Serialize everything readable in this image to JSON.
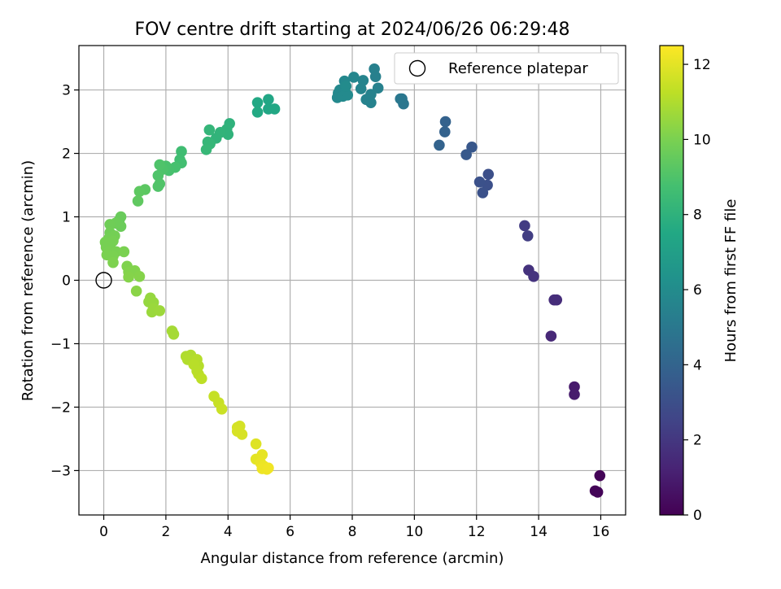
{
  "chart_data": {
    "type": "scatter",
    "title": "FOV centre drift starting at 2024/06/26 06:29:48",
    "xlabel": "Angular distance from reference (arcmin)",
    "ylabel": "Rotation from reference (arcmin)",
    "xlim": [
      -0.8,
      16.8
    ],
    "ylim": [
      -3.7,
      3.7
    ],
    "xticks": [
      0,
      2,
      4,
      6,
      8,
      10,
      12,
      14,
      16
    ],
    "xtick_labels": [
      "0",
      "2",
      "4",
      "6",
      "8",
      "10",
      "12",
      "14",
      "16"
    ],
    "yticks": [
      -3,
      -2,
      -1,
      0,
      1,
      2,
      3
    ],
    "ytick_labels": [
      "−3",
      "−2",
      "−1",
      "0",
      "1",
      "2",
      "3"
    ],
    "grid": true,
    "legend": {
      "position": "top-right",
      "label": "Reference platepar"
    },
    "reference_point": {
      "x": 0,
      "y": 0
    },
    "colorbar": {
      "label": "Hours from first FF file",
      "range": [
        0,
        12.5
      ],
      "ticks": [
        0,
        2,
        4,
        6,
        8,
        10,
        12
      ],
      "tick_labels": [
        "0",
        "2",
        "4",
        "6",
        "8",
        "10",
        "12"
      ],
      "colormap": "viridis"
    },
    "points": [
      [
        15.97,
        -3.08,
        0.1
      ],
      [
        15.82,
        -3.32,
        0.15
      ],
      [
        15.9,
        -3.34,
        0.15
      ],
      [
        15.15,
        -1.68,
        0.9
      ],
      [
        15.15,
        -1.8,
        0.95
      ],
      [
        14.4,
        -0.88,
        1.4
      ],
      [
        14.5,
        -0.31,
        1.6
      ],
      [
        14.58,
        -0.31,
        1.6
      ],
      [
        13.68,
        0.16,
        1.8
      ],
      [
        13.84,
        0.06,
        1.85
      ],
      [
        13.55,
        0.86,
        2.2
      ],
      [
        13.65,
        0.7,
        2.25
      ],
      [
        12.38,
        1.67,
        3.0
      ],
      [
        12.35,
        1.5,
        3.05
      ],
      [
        12.1,
        1.55,
        3.1
      ],
      [
        12.2,
        1.38,
        3.1
      ],
      [
        11.85,
        2.1,
        3.4
      ],
      [
        11.67,
        1.98,
        3.45
      ],
      [
        11.0,
        2.5,
        3.9
      ],
      [
        10.98,
        2.34,
        3.9
      ],
      [
        10.8,
        2.13,
        3.95
      ],
      [
        9.6,
        2.86,
        4.9
      ],
      [
        9.65,
        2.78,
        4.9
      ],
      [
        9.55,
        2.86,
        4.95
      ],
      [
        8.71,
        3.33,
        5.4
      ],
      [
        8.75,
        3.21,
        5.4
      ],
      [
        8.83,
        3.03,
        5.45
      ],
      [
        8.6,
        2.93,
        5.5
      ],
      [
        8.45,
        2.85,
        5.5
      ],
      [
        8.6,
        2.8,
        5.5
      ],
      [
        8.35,
        3.15,
        5.6
      ],
      [
        8.28,
        3.02,
        5.6
      ],
      [
        8.05,
        3.2,
        5.7
      ],
      [
        7.75,
        3.14,
        5.8
      ],
      [
        7.6,
        3.0,
        5.8
      ],
      [
        7.55,
        2.95,
        5.85
      ],
      [
        7.52,
        2.88,
        5.85
      ],
      [
        7.7,
        2.9,
        5.9
      ],
      [
        7.85,
        2.92,
        5.9
      ],
      [
        7.8,
        3.06,
        5.95
      ],
      [
        5.3,
        2.85,
        7.4
      ],
      [
        5.3,
        2.7,
        7.4
      ],
      [
        5.5,
        2.7,
        7.45
      ],
      [
        4.95,
        2.8,
        7.5
      ],
      [
        4.95,
        2.65,
        7.55
      ],
      [
        4.05,
        2.47,
        8.0
      ],
      [
        3.96,
        2.38,
        8.05
      ],
      [
        4.0,
        2.3,
        8.05
      ],
      [
        3.75,
        2.33,
        8.1
      ],
      [
        3.62,
        2.24,
        8.1
      ],
      [
        3.4,
        2.37,
        8.2
      ],
      [
        3.35,
        2.18,
        8.25
      ],
      [
        3.42,
        2.15,
        8.25
      ],
      [
        3.3,
        2.06,
        8.3
      ],
      [
        2.5,
        2.03,
        8.6
      ],
      [
        2.45,
        1.9,
        8.65
      ],
      [
        2.5,
        1.85,
        8.7
      ],
      [
        2.3,
        1.78,
        8.8
      ],
      [
        2.1,
        1.73,
        8.85
      ],
      [
        2.0,
        1.8,
        8.9
      ],
      [
        1.9,
        1.75,
        8.95
      ],
      [
        1.8,
        1.82,
        9.0
      ],
      [
        1.75,
        1.65,
        9.0
      ],
      [
        1.8,
        1.52,
        9.05
      ],
      [
        1.75,
        1.48,
        9.05
      ],
      [
        1.33,
        1.43,
        9.3
      ],
      [
        1.15,
        1.4,
        9.35
      ],
      [
        1.1,
        1.25,
        9.4
      ],
      [
        0.55,
        1.0,
        9.6
      ],
      [
        0.5,
        0.95,
        9.6
      ],
      [
        0.55,
        0.85,
        9.65
      ],
      [
        0.38,
        0.9,
        9.7
      ],
      [
        0.2,
        0.88,
        9.75
      ],
      [
        0.2,
        0.75,
        9.8
      ],
      [
        0.35,
        0.7,
        9.85
      ],
      [
        0.15,
        0.65,
        9.85
      ],
      [
        0.05,
        0.6,
        9.9
      ],
      [
        0.3,
        0.62,
        9.9
      ],
      [
        0.08,
        0.52,
        9.9
      ],
      [
        0.22,
        0.5,
        9.9
      ],
      [
        0.15,
        0.45,
        9.95
      ],
      [
        0.4,
        0.45,
        9.95
      ],
      [
        0.3,
        0.38,
        10.0
      ],
      [
        0.1,
        0.4,
        10.0
      ],
      [
        0.65,
        0.45,
        10.0
      ],
      [
        0.3,
        0.28,
        10.05
      ],
      [
        0.75,
        0.22,
        10.1
      ],
      [
        0.8,
        0.13,
        10.15
      ],
      [
        1.0,
        0.15,
        10.15
      ],
      [
        0.8,
        0.05,
        10.2
      ],
      [
        1.15,
        0.06,
        10.2
      ],
      [
        1.05,
        -0.17,
        10.3
      ],
      [
        1.5,
        -0.28,
        10.5
      ],
      [
        1.45,
        -0.34,
        10.5
      ],
      [
        1.6,
        -0.35,
        10.55
      ],
      [
        1.6,
        -0.45,
        10.6
      ],
      [
        1.55,
        -0.5,
        10.6
      ],
      [
        1.8,
        -0.48,
        10.65
      ],
      [
        2.2,
        -0.8,
        10.8
      ],
      [
        2.25,
        -0.85,
        10.8
      ],
      [
        2.65,
        -1.2,
        11.0
      ],
      [
        2.8,
        -1.18,
        11.0
      ],
      [
        2.7,
        -1.25,
        11.05
      ],
      [
        3.0,
        -1.25,
        11.1
      ],
      [
        3.05,
        -1.35,
        11.1
      ],
      [
        2.9,
        -1.33,
        11.15
      ],
      [
        3.0,
        -1.43,
        11.15
      ],
      [
        3.05,
        -1.48,
        11.2
      ],
      [
        3.15,
        -1.55,
        11.25
      ],
      [
        3.55,
        -1.83,
        11.4
      ],
      [
        3.7,
        -1.93,
        11.45
      ],
      [
        3.8,
        -2.03,
        11.5
      ],
      [
        4.3,
        -2.32,
        11.7
      ],
      [
        4.38,
        -2.3,
        11.7
      ],
      [
        4.3,
        -2.38,
        11.75
      ],
      [
        4.45,
        -2.43,
        11.75
      ],
      [
        4.9,
        -2.58,
        11.9
      ],
      [
        4.9,
        -2.82,
        12.0
      ],
      [
        5.1,
        -2.75,
        12.05
      ],
      [
        5.05,
        -2.88,
        12.1
      ],
      [
        5.15,
        -2.93,
        12.15
      ],
      [
        5.1,
        -2.97,
        12.2
      ],
      [
        5.25,
        -2.98,
        12.2
      ],
      [
        5.3,
        -2.96,
        12.25
      ]
    ]
  }
}
